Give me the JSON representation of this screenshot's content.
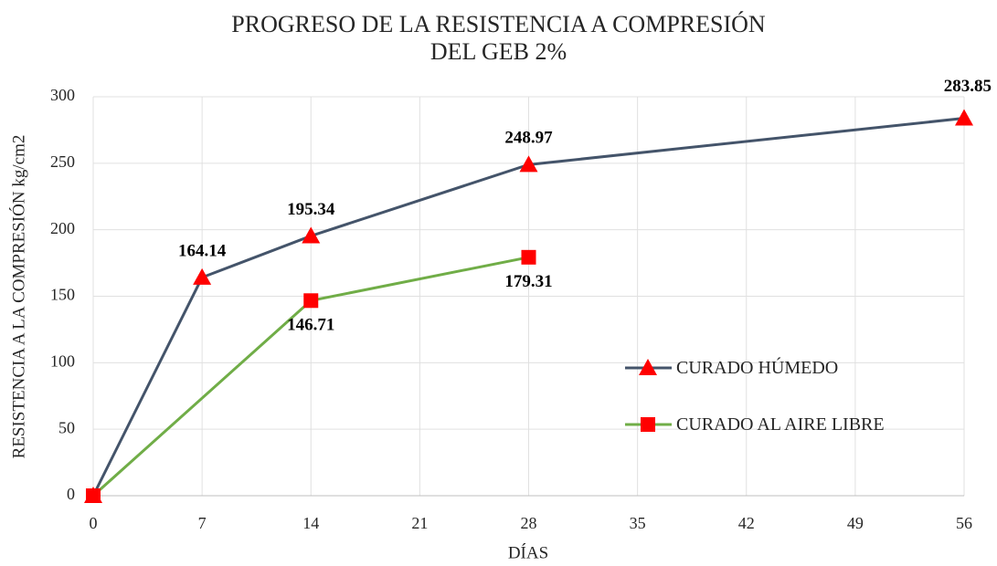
{
  "chart_data": {
    "type": "line",
    "title": "PROGRESO DE LA RESISTENCIA A COMPRESIÓN\nDEL GEB 2%",
    "xlabel": "DÍAS",
    "ylabel": "RESISTENCIA A LA COMPRESIÓN kg/cm2",
    "xlim": [
      0,
      56
    ],
    "xticks": [
      0,
      7,
      14,
      21,
      28,
      35,
      42,
      49,
      56
    ],
    "ylim": [
      0,
      300
    ],
    "yticks": [
      0,
      50,
      100,
      150,
      200,
      250,
      300
    ],
    "grid": true,
    "series": [
      {
        "name": "CURADO HÚMEDO",
        "color": "#44546a",
        "marker": "triangle",
        "marker_color": "#ff0000",
        "label_position": "above",
        "x": [
          0,
          7,
          14,
          28,
          56
        ],
        "values": [
          0,
          164.14,
          195.34,
          248.97,
          283.85
        ],
        "value_labels": [
          null,
          "164.14",
          "195.34",
          "248.97",
          "283.85"
        ]
      },
      {
        "name": "CURADO AL AIRE LIBRE",
        "color": "#70ad47",
        "marker": "square",
        "marker_color": "#ff0000",
        "label_position": "below",
        "x": [
          0,
          14,
          28
        ],
        "values": [
          0,
          146.71,
          179.31
        ],
        "value_labels": [
          null,
          "146.71",
          "179.31"
        ]
      }
    ]
  }
}
